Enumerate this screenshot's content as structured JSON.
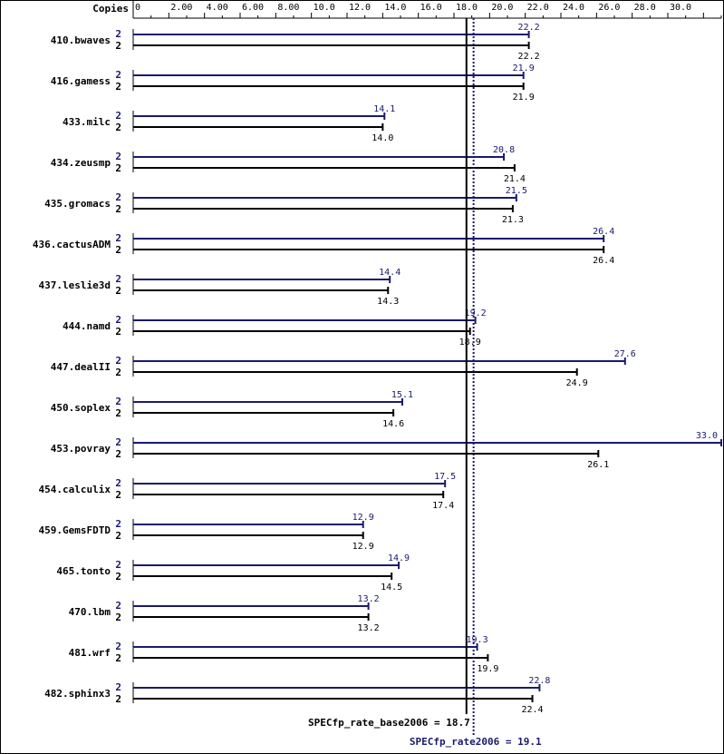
{
  "chart_data": {
    "type": "bar",
    "orientation": "horizontal",
    "axis_header": "Copies",
    "x_ticks": [
      "0",
      "2.00",
      "4.00",
      "6.00",
      "8.00",
      "10.0",
      "12.0",
      "14.0",
      "16.0",
      "18.0",
      "20.0",
      "22.0",
      "24.0",
      "26.0",
      "28.0",
      "30.0",
      "33.0"
    ],
    "xlim": [
      0,
      33
    ],
    "categories": [
      "410.bwaves",
      "416.gamess",
      "433.milc",
      "434.zeusmp",
      "435.gromacs",
      "436.cactusADM",
      "437.leslie3d",
      "444.namd",
      "447.dealII",
      "450.soplex",
      "453.povray",
      "454.calculix",
      "459.GemsFDTD",
      "465.tonto",
      "470.lbm",
      "481.wrf",
      "482.sphinx3"
    ],
    "series": [
      {
        "name": "peak",
        "color": "#191970",
        "copies": [
          "2",
          "2",
          "2",
          "2",
          "2",
          "2",
          "2",
          "2",
          "2",
          "2",
          "2",
          "2",
          "2",
          "2",
          "2",
          "2",
          "2"
        ],
        "values": [
          22.2,
          21.9,
          14.1,
          20.8,
          21.5,
          26.4,
          14.4,
          19.2,
          27.6,
          15.1,
          33.0,
          17.5,
          12.9,
          14.9,
          13.2,
          19.3,
          22.8
        ],
        "labels": [
          "22.2",
          "21.9",
          "14.1",
          "20.8",
          "21.5",
          "26.4",
          "14.4",
          "19.2",
          "27.6",
          "15.1",
          "33.0",
          "17.5",
          "12.9",
          "14.9",
          "13.2",
          "19.3",
          "22.8"
        ]
      },
      {
        "name": "base",
        "color": "#000000",
        "copies": [
          "2",
          "2",
          "2",
          "2",
          "2",
          "2",
          "2",
          "2",
          "2",
          "2",
          "2",
          "2",
          "2",
          "2",
          "2",
          "2",
          "2"
        ],
        "values": [
          22.2,
          21.9,
          14.0,
          21.4,
          21.3,
          26.4,
          14.3,
          18.9,
          24.9,
          14.6,
          26.1,
          17.4,
          12.9,
          14.5,
          13.2,
          19.9,
          22.4
        ],
        "labels": [
          "22.2",
          "21.9",
          "14.0",
          "21.4",
          "21.3",
          "26.4",
          "14.3",
          "18.9",
          "24.9",
          "14.6",
          "26.1",
          "17.4",
          "12.9",
          "14.5",
          "13.2",
          "19.9",
          "22.4"
        ]
      }
    ],
    "summary_base": {
      "label": "SPECfp_rate_base2006 = 18.7",
      "value": 18.7
    },
    "summary_peak": {
      "label": "SPECfp_rate2006 = 19.1",
      "value": 19.1
    }
  }
}
